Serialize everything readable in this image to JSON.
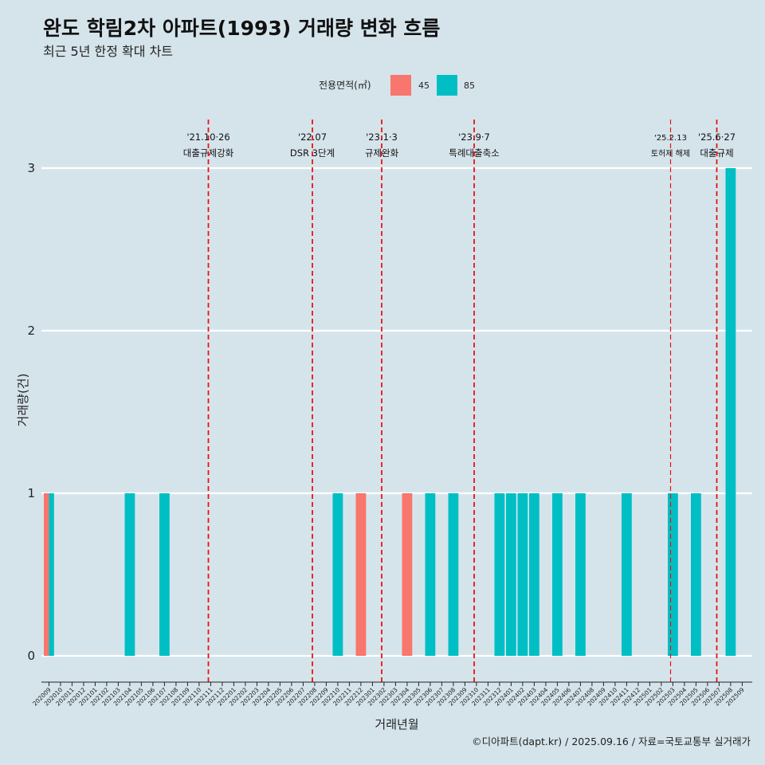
{
  "chart_data": {
    "type": "bar",
    "title": "완도 학림2차 아파트(1993) 거래량 변화 흐름",
    "subtitle": "최근 5년 한정 확대 차트",
    "xlabel": "거래년월",
    "ylabel": "거래량(건)",
    "ylim": [
      0,
      3
    ],
    "yticks": [
      0,
      1,
      2,
      3
    ],
    "grid": true,
    "legend": {
      "title": "전용면적(㎡)",
      "position": "top",
      "entries": [
        {
          "label": "45",
          "color": "#f8766d"
        },
        {
          "label": "85",
          "color": "#00bfc4"
        }
      ]
    },
    "categories": [
      "202009",
      "202010",
      "202011",
      "202012",
      "202101",
      "202102",
      "202103",
      "202104",
      "202105",
      "202106",
      "202107",
      "202108",
      "202109",
      "202110",
      "202111",
      "202112",
      "202201",
      "202202",
      "202203",
      "202204",
      "202205",
      "202206",
      "202207",
      "202208",
      "202209",
      "202210",
      "202211",
      "202212",
      "202301",
      "202302",
      "202303",
      "202304",
      "202305",
      "202306",
      "202307",
      "202308",
      "202309",
      "202310",
      "202311",
      "202312",
      "202401",
      "202402",
      "202403",
      "202404",
      "202405",
      "202406",
      "202407",
      "202408",
      "202409",
      "202410",
      "202411",
      "202412",
      "202501",
      "202502",
      "202503",
      "202504",
      "202505",
      "202506",
      "202507",
      "202508",
      "202509"
    ],
    "series": [
      {
        "name": "45",
        "color": "#f8766d",
        "points": [
          {
            "x": "202009",
            "y": 1
          },
          {
            "x": "202212",
            "y": 1
          },
          {
            "x": "202304",
            "y": 1
          }
        ]
      },
      {
        "name": "85",
        "color": "#00bfc4",
        "points": [
          {
            "x": "202009",
            "y": 1
          },
          {
            "x": "202104",
            "y": 1
          },
          {
            "x": "202107",
            "y": 1
          },
          {
            "x": "202210",
            "y": 1
          },
          {
            "x": "202306",
            "y": 1
          },
          {
            "x": "202308",
            "y": 1
          },
          {
            "x": "202312",
            "y": 1
          },
          {
            "x": "202401",
            "y": 1
          },
          {
            "x": "202402",
            "y": 1
          },
          {
            "x": "202403",
            "y": 1
          },
          {
            "x": "202405",
            "y": 1
          },
          {
            "x": "202407",
            "y": 1
          },
          {
            "x": "202411",
            "y": 1
          },
          {
            "x": "202503",
            "y": 1
          },
          {
            "x": "202505",
            "y": 1
          },
          {
            "x": "202508",
            "y": 3
          }
        ]
      }
    ],
    "annotations": [
      {
        "x": 13.8,
        "date": "'21.10·26",
        "label": "대출규제강화",
        "small": false
      },
      {
        "x": 22.8,
        "date": "'22.07",
        "label": "DSR 3단계",
        "small": false
      },
      {
        "x": 28.8,
        "date": "'23.1·3",
        "label": "규제완화",
        "small": false
      },
      {
        "x": 36.8,
        "date": "'23.9·7",
        "label": "특례대출축소",
        "small": false
      },
      {
        "x": 53.8,
        "date": "'25.2.13",
        "label": "토허제 해제",
        "small": true
      },
      {
        "x": 57.8,
        "date": "'25.6·27",
        "label": "대출규제",
        "small": false
      }
    ],
    "line_color": "#ee1111",
    "caption": "©디아파트(dapt.kr) / 2025.09.16 / 자료=국토교통부 실거래가"
  }
}
